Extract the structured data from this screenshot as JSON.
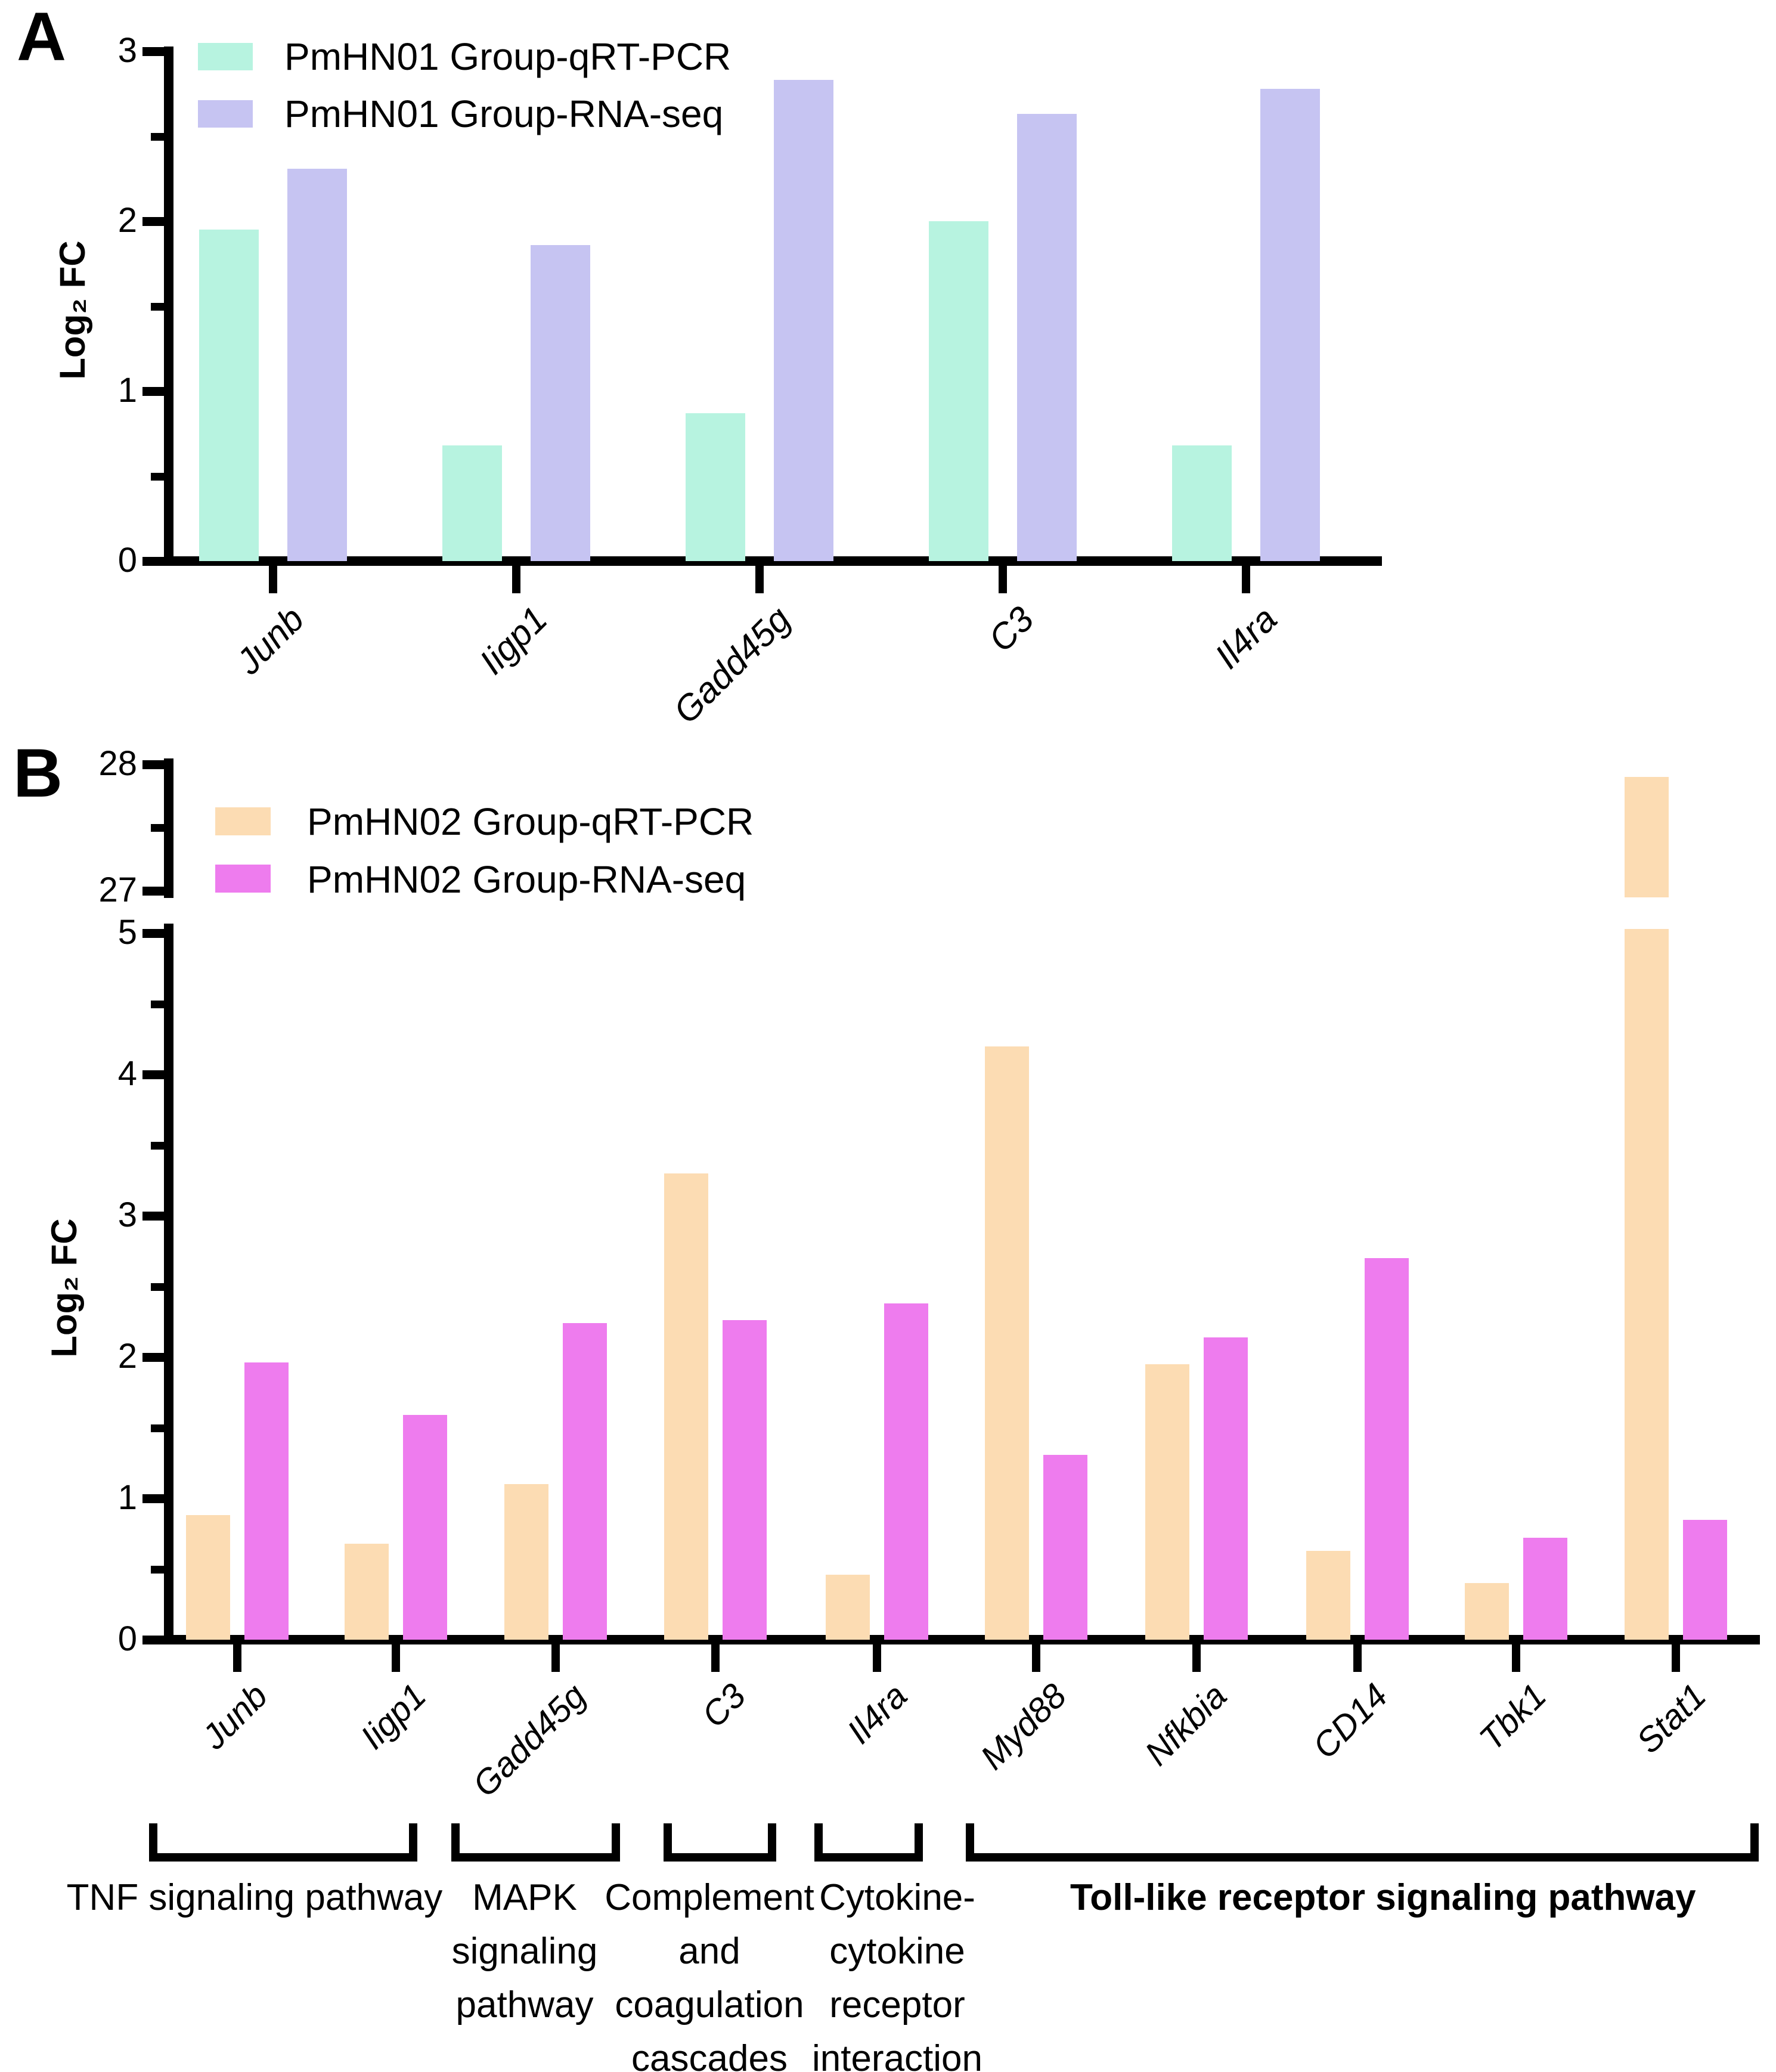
{
  "chart_data": [
    {
      "id": "panel-A",
      "type": "bar",
      "panel_label": "A",
      "ylabel": "Log₂ FC",
      "ylim": [
        0,
        3
      ],
      "yticks": [
        0,
        1,
        2,
        3
      ],
      "minor_yticks": [
        0.5,
        1.5,
        2.5
      ],
      "grid": false,
      "legend_position": "top-left",
      "categories": [
        "Junb",
        "Iigp1",
        "Gadd45g",
        "C3",
        "Il4ra"
      ],
      "series": [
        {
          "name": "PmHN01 Group-qRT-PCR",
          "color": "#b7f3e0",
          "values": [
            1.95,
            0.68,
            0.87,
            2.0,
            0.68
          ]
        },
        {
          "name": "PmHN01 Group-RNA-seq",
          "color": "#c6c4f2",
          "values": [
            2.31,
            1.86,
            2.83,
            2.63,
            2.78
          ]
        }
      ]
    },
    {
      "id": "panel-B",
      "type": "bar",
      "panel_label": "B",
      "ylabel": "Log₂ FC",
      "broken_axis": {
        "lower": [
          0,
          5
        ],
        "upper": [
          27,
          28
        ],
        "upper_ticks": [
          28,
          27
        ],
        "upper_minor_ticks": [
          27.5
        ]
      },
      "yticks": [
        0,
        1,
        2,
        3,
        4,
        5
      ],
      "minor_yticks": [
        0.5,
        1.5,
        2.5,
        3.5,
        4.5
      ],
      "grid": false,
      "legend_position": "top-left",
      "categories": [
        "Junb",
        "Iigp1",
        "Gadd45g",
        "C3",
        "Il4ra",
        "Myd88",
        "Nfkbia",
        "CD14",
        "Tbk1",
        "Stat1"
      ],
      "series": [
        {
          "name": "PmHN02 Group-qRT-PCR",
          "color": "#fcdcb3",
          "values": [
            0.88,
            0.68,
            1.1,
            3.3,
            0.46,
            4.2,
            1.95,
            0.63,
            0.4,
            27.9
          ]
        },
        {
          "name": "PmHN02 Group-RNA-seq",
          "color": "#ee7cee",
          "values": [
            1.96,
            1.59,
            2.24,
            2.26,
            2.38,
            1.31,
            2.14,
            2.7,
            0.72,
            0.85
          ]
        }
      ],
      "pathway_groups": [
        {
          "label": "TNF signaling pathway",
          "bold": false,
          "categories": [
            "Junb",
            "Iigp1"
          ],
          "lines": [
            "TNF signaling pathway"
          ]
        },
        {
          "label": "MAPK signaling pathway",
          "bold": false,
          "categories": [
            "Gadd45g"
          ],
          "lines": [
            "MAPK",
            "signaling",
            "pathway"
          ]
        },
        {
          "label": "Complement and coagulation cascades",
          "bold": false,
          "categories": [
            "C3"
          ],
          "lines": [
            "Complement",
            "and",
            "coagulation",
            "cascades"
          ]
        },
        {
          "label": "Cytokine-cytokine receptor interaction",
          "bold": false,
          "categories": [
            "Il4ra"
          ],
          "lines": [
            "Cytokine-",
            "cytokine",
            "receptor",
            "interaction"
          ]
        },
        {
          "label": "Toll-like receptor signaling pathway",
          "bold": true,
          "categories": [
            "Myd88",
            "Nfkbia",
            "CD14",
            "Tbk1",
            "Stat1"
          ],
          "lines": [
            "Toll-like receptor signaling pathway"
          ]
        }
      ]
    }
  ]
}
